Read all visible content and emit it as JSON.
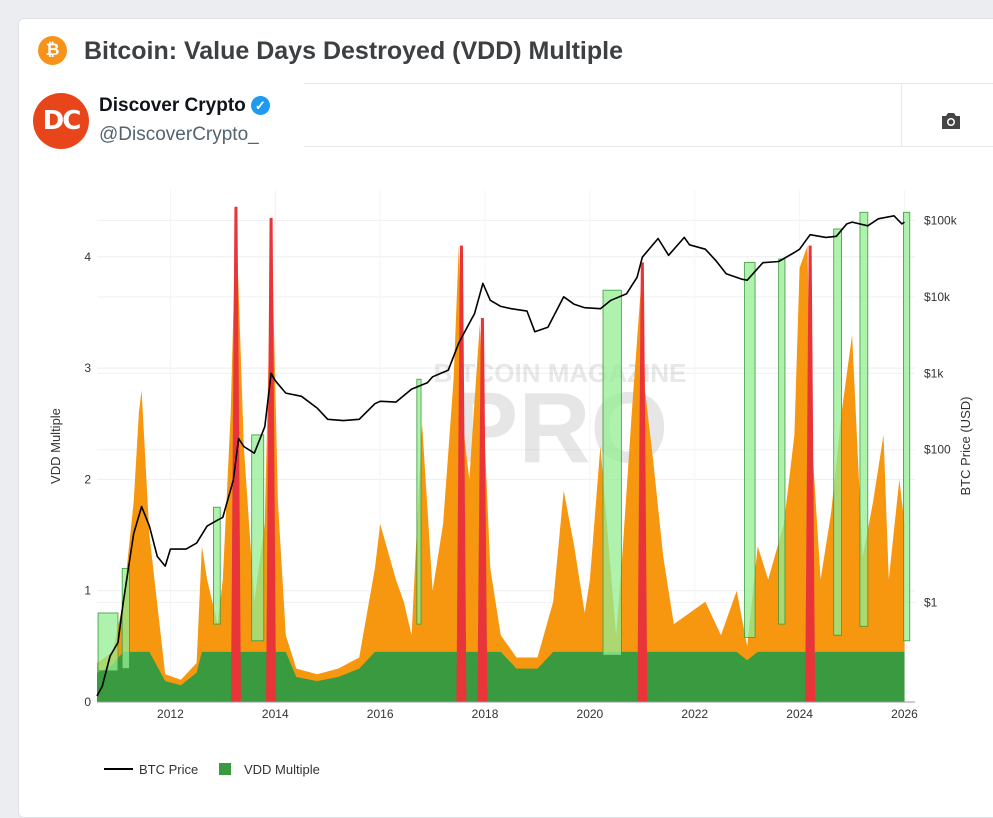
{
  "header": {
    "title": "Bitcoin: Value Days Destroyed (VDD) Multiple",
    "logo_icon": "bitcoin-icon"
  },
  "tweet": {
    "author": "Discover Crypto",
    "handle": "@DiscoverCrypto_",
    "avatar_text": "DC",
    "verified_icon": "verified-badge-icon"
  },
  "toolbar": {
    "camera_icon": "camera-icon"
  },
  "watermark": {
    "top": "BITCOIN MAGAZINE",
    "main": "PRO"
  },
  "colors": {
    "green": "#3a9a3f",
    "orange": "#f7960f",
    "red": "#e8353a",
    "band": "#93ee93",
    "price": "#000000"
  },
  "chart_data": {
    "type": "area",
    "title": "Bitcoin: Value Days Destroyed (VDD) Multiple",
    "ylabel_left": "VDD Multiple",
    "ylabel_right": "BTC Price (USD)",
    "xlim": [
      2010.6,
      2026.2
    ],
    "ylim_left": [
      0,
      4.6
    ],
    "yscale_right": "log",
    "ylim_right_usd": [
      0.05,
      250000
    ],
    "x_ticks": [
      "2012",
      "2014",
      "2016",
      "2018",
      "2020",
      "2022",
      "2024",
      "2026"
    ],
    "y_ticks_left": [
      "0",
      "1",
      "2",
      "3",
      "4"
    ],
    "y_ticks_right": [
      "$1",
      "$100",
      "$1k",
      "$10k",
      "$100k"
    ],
    "y_ticks_right_values": [
      1,
      100,
      1000,
      10000,
      100000
    ],
    "legend_position": "bottom-left",
    "legend": [
      {
        "name": "BTC Price",
        "style": "line"
      },
      {
        "name": "VDD Multiple",
        "style": "square"
      }
    ],
    "price_series": {
      "x": [
        2010.6,
        2010.7,
        2010.85,
        2011.0,
        2011.1,
        2011.3,
        2011.45,
        2011.6,
        2011.75,
        2011.9,
        2012.0,
        2012.3,
        2012.5,
        2012.7,
        2012.9,
        2013.0,
        2013.2,
        2013.3,
        2013.4,
        2013.6,
        2013.8,
        2013.92,
        2014.0,
        2014.2,
        2014.5,
        2014.8,
        2015.0,
        2015.3,
        2015.6,
        2015.9,
        2016.0,
        2016.3,
        2016.6,
        2016.9,
        2017.0,
        2017.3,
        2017.5,
        2017.7,
        2017.8,
        2017.96,
        2018.1,
        2018.3,
        2018.5,
        2018.8,
        2018.95,
        2019.2,
        2019.5,
        2019.7,
        2019.9,
        2020.2,
        2020.4,
        2020.7,
        2020.9,
        2021.0,
        2021.3,
        2021.5,
        2021.8,
        2021.9,
        2022.2,
        2022.4,
        2022.6,
        2022.9,
        2023.0,
        2023.3,
        2023.6,
        2023.9,
        2024.0,
        2024.2,
        2024.5,
        2024.7,
        2024.9,
        2025.0,
        2025.3,
        2025.5,
        2025.8,
        2025.95,
        2026.0
      ],
      "y": [
        0.06,
        0.08,
        0.2,
        0.3,
        1.0,
        8,
        18,
        10,
        4,
        3,
        5,
        5,
        6,
        10,
        12,
        13,
        40,
        140,
        110,
        90,
        200,
        1000,
        800,
        550,
        500,
        350,
        250,
        240,
        250,
        400,
        430,
        420,
        620,
        750,
        900,
        1100,
        2500,
        4500,
        6000,
        15000,
        9000,
        7500,
        7000,
        6500,
        3500,
        4000,
        10000,
        8000,
        7200,
        7000,
        9000,
        11000,
        18000,
        33000,
        58000,
        35000,
        60000,
        48000,
        42000,
        30000,
        20000,
        17000,
        16500,
        28000,
        29000,
        38000,
        42000,
        65000,
        60000,
        62000,
        90000,
        95000,
        85000,
        105000,
        115000,
        90000,
        95000
      ]
    },
    "vdd_series": {
      "x": [
        2010.6,
        2010.9,
        2011.1,
        2011.3,
        2011.4,
        2011.45,
        2011.6,
        2011.9,
        2012.2,
        2012.5,
        2012.6,
        2012.7,
        2012.9,
        2013.0,
        2013.15,
        2013.25,
        2013.4,
        2013.6,
        2013.8,
        2013.93,
        2014.05,
        2014.2,
        2014.4,
        2014.8,
        2015.2,
        2015.6,
        2015.9,
        2016.0,
        2016.3,
        2016.45,
        2016.6,
        2016.8,
        2017.0,
        2017.2,
        2017.4,
        2017.5,
        2017.6,
        2017.7,
        2017.9,
        2017.97,
        2018.1,
        2018.3,
        2018.6,
        2019.0,
        2019.3,
        2019.5,
        2019.7,
        2019.9,
        2020.0,
        2020.2,
        2020.5,
        2020.6,
        2020.8,
        2021.0,
        2021.05,
        2021.2,
        2021.4,
        2021.6,
        2021.9,
        2022.2,
        2022.5,
        2022.8,
        2023.0,
        2023.2,
        2023.4,
        2023.7,
        2023.9,
        2024.0,
        2024.15,
        2024.2,
        2024.4,
        2024.6,
        2024.8,
        2025.0,
        2025.2,
        2025.4,
        2025.6,
        2025.7,
        2025.9,
        2026.0
      ],
      "y": [
        0.35,
        0.45,
        0.9,
        1.8,
        2.6,
        2.8,
        1.5,
        0.25,
        0.2,
        0.35,
        1.4,
        1.1,
        0.7,
        1.1,
        2.6,
        4.4,
        2.3,
        0.9,
        1.6,
        4.3,
        1.8,
        0.6,
        0.3,
        0.25,
        0.3,
        0.4,
        1.2,
        1.6,
        1.1,
        0.9,
        0.6,
        2.5,
        1.0,
        1.6,
        2.9,
        4.1,
        2.4,
        2.0,
        3.4,
        2.6,
        1.2,
        0.6,
        0.4,
        0.4,
        0.9,
        1.9,
        1.4,
        0.8,
        1.1,
        2.3,
        0.6,
        1.2,
        2.6,
        3.9,
        2.8,
        2.2,
        1.3,
        0.7,
        0.8,
        0.9,
        0.6,
        1.0,
        0.5,
        1.4,
        1.1,
        1.6,
        2.4,
        3.9,
        4.1,
        2.6,
        1.1,
        1.7,
        2.6,
        3.3,
        1.3,
        1.8,
        2.4,
        1.1,
        2.0,
        1.6
      ]
    },
    "red_spikes": [
      {
        "x": 2013.25,
        "y": 4.45
      },
      {
        "x": 2013.92,
        "y": 4.35
      },
      {
        "x": 2017.55,
        "y": 4.1
      },
      {
        "x": 2017.95,
        "y": 3.45
      },
      {
        "x": 2021.0,
        "y": 3.95
      },
      {
        "x": 2024.2,
        "y": 4.1
      }
    ],
    "green_bands": [
      {
        "x0": 2010.62,
        "x1": 2011.0,
        "bottom": 0.28,
        "top": 0.8
      },
      {
        "x0": 2011.08,
        "x1": 2011.22,
        "bottom": 0.3,
        "top": 1.2
      },
      {
        "x0": 2012.82,
        "x1": 2012.95,
        "bottom": 0.7,
        "top": 1.75
      },
      {
        "x0": 2013.55,
        "x1": 2013.78,
        "bottom": 0.55,
        "top": 2.4
      },
      {
        "x0": 2016.7,
        "x1": 2016.78,
        "bottom": 0.7,
        "top": 2.9
      },
      {
        "x0": 2020.25,
        "x1": 2020.6,
        "bottom": 0.42,
        "top": 3.7
      },
      {
        "x0": 2022.95,
        "x1": 2023.15,
        "bottom": 0.58,
        "top": 3.95
      },
      {
        "x0": 2023.6,
        "x1": 2023.72,
        "bottom": 0.7,
        "top": 3.98
      },
      {
        "x0": 2024.65,
        "x1": 2024.8,
        "bottom": 0.6,
        "top": 4.25
      },
      {
        "x0": 2025.15,
        "x1": 2025.3,
        "bottom": 0.68,
        "top": 4.4
      },
      {
        "x0": 2025.98,
        "x1": 2026.1,
        "bottom": 0.55,
        "top": 4.4
      }
    ]
  }
}
